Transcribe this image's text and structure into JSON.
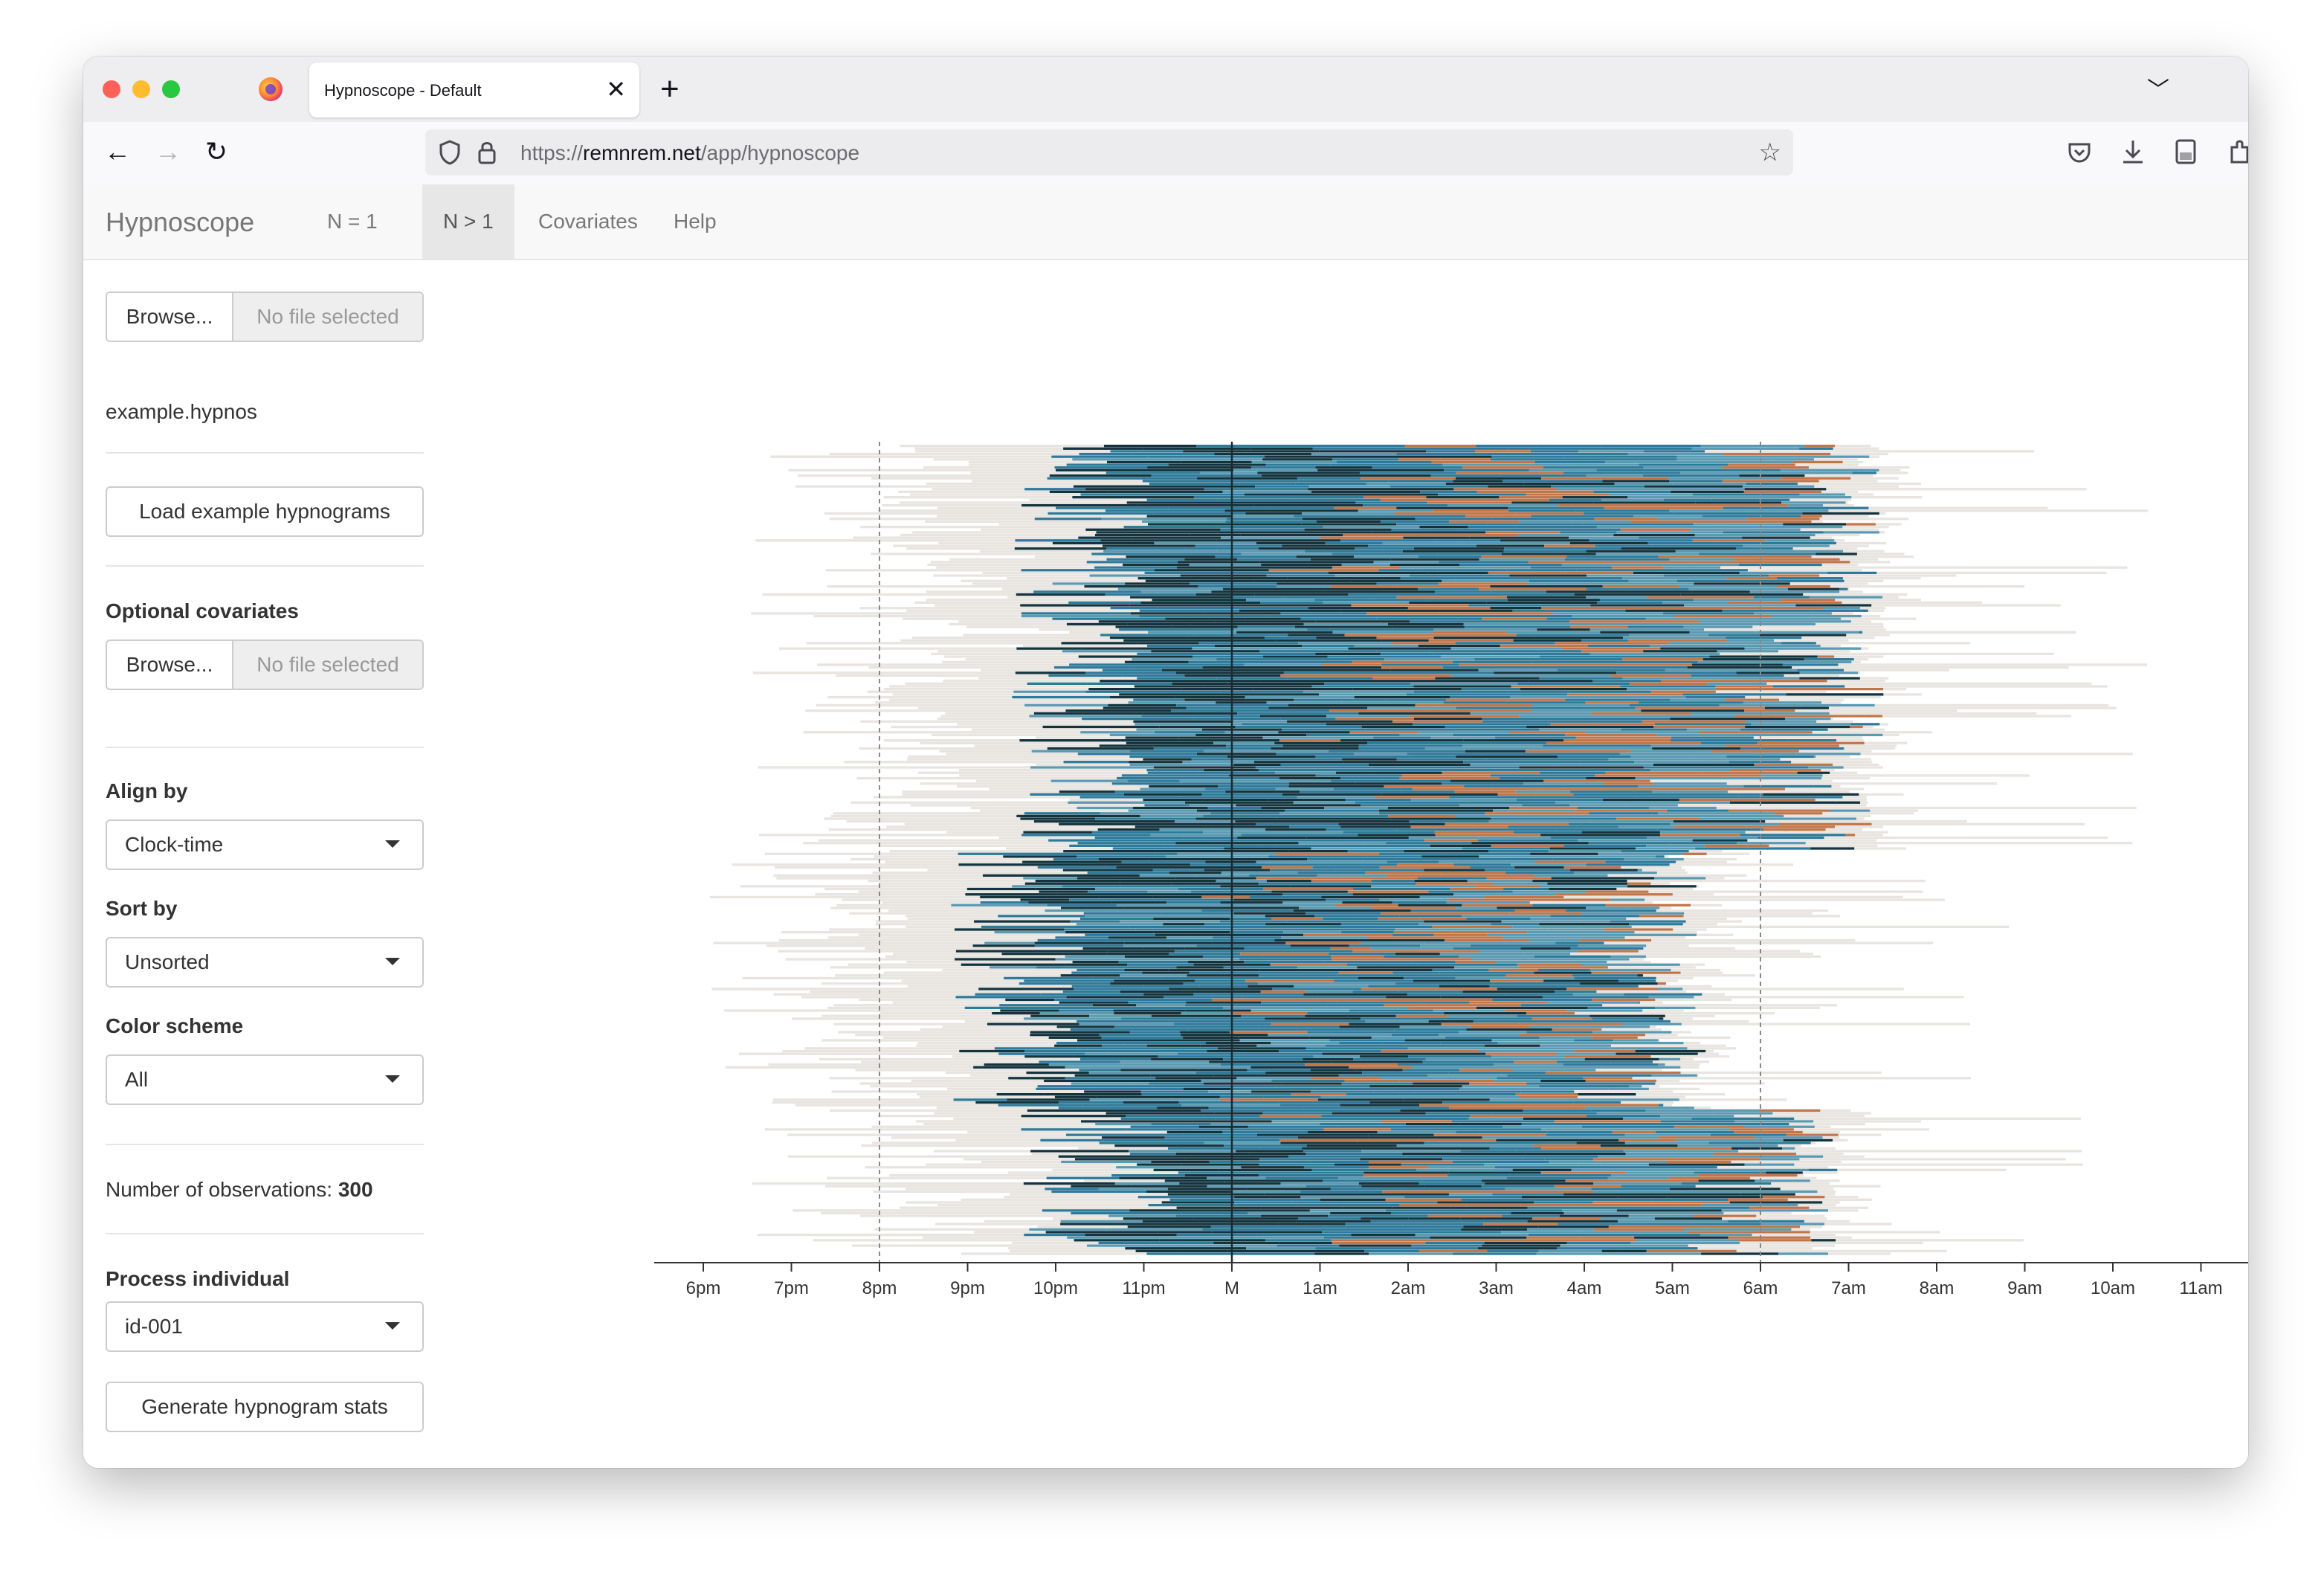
{
  "browser": {
    "tab_title": "Hypnoscope - Default",
    "tab_close": "✕",
    "new_tab": "+",
    "url_prefix": "https://",
    "url_host": "remnrem.net",
    "url_path": "/app/hypnoscope"
  },
  "app": {
    "brand": "Hypnoscope",
    "nav": [
      "N = 1",
      "N > 1",
      "Covariates",
      "Help"
    ],
    "active_nav": "N > 1"
  },
  "sidebar": {
    "hypno_file": {
      "button": "Browse...",
      "placeholder": "No file selected"
    },
    "loaded_file": "example.hypnos",
    "load_example_button": "Load example hypnograms",
    "covariates": {
      "label": "Optional covariates",
      "button": "Browse...",
      "placeholder": "No file selected"
    },
    "align_by": {
      "label": "Align by",
      "value": "Clock-time"
    },
    "sort_by": {
      "label": "Sort by",
      "value": "Unsorted"
    },
    "color_scheme": {
      "label": "Color scheme",
      "value": "All"
    },
    "observations": {
      "label": "Number of observations: ",
      "value": "300"
    },
    "process_individual": {
      "label": "Process individual",
      "value": "id-001"
    },
    "stats_button": "Generate hypnogram stats"
  },
  "chart_data": {
    "type": "heatmap",
    "description_free": true,
    "x_ticks": [
      "6pm",
      "7pm",
      "8pm",
      "9pm",
      "10pm",
      "11pm",
      "M",
      "1am",
      "2am",
      "3am",
      "4am",
      "5am",
      "6am",
      "7am",
      "8am",
      "9am",
      "10am",
      "11am"
    ],
    "n_rows": 300,
    "reference_lines_hours": [
      20,
      24,
      30
    ],
    "solid_line_hour": 24,
    "colors": {
      "wake": "#e8e4e0",
      "n1": "#5a9ab2",
      "n2": "#2e7a9a",
      "n3": "#13343f",
      "rem": "#c0764a",
      "axis": "#333333"
    }
  }
}
